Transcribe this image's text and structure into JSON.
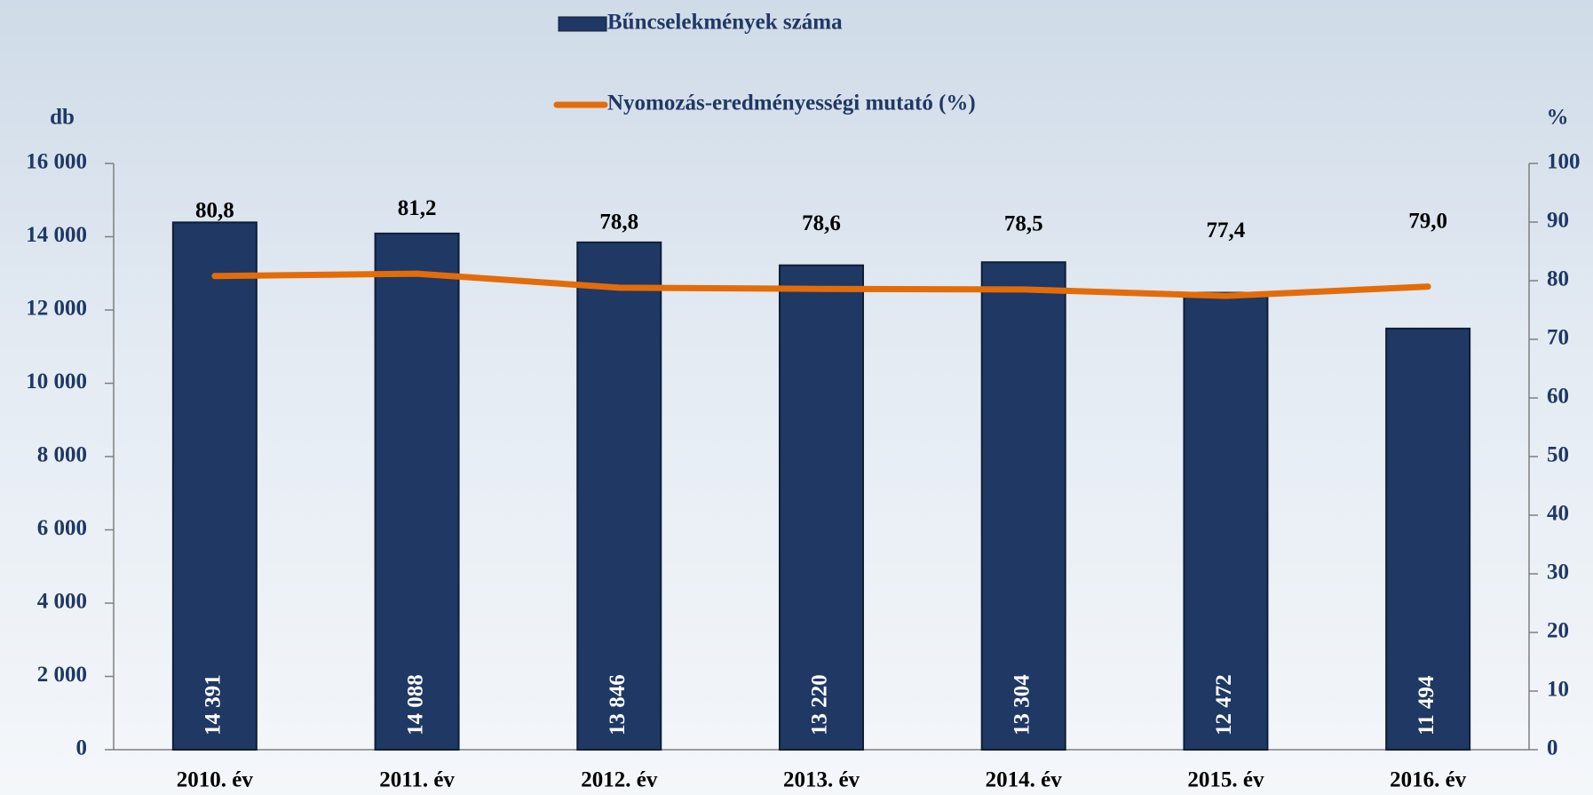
{
  "chart_data": {
    "type": "bar",
    "categories": [
      "2010. év",
      "2011. év",
      "2012. év",
      "2013. év",
      "2014. év",
      "2015. év",
      "2016. év"
    ],
    "series": [
      {
        "name": "Bűncselekmények száma",
        "type": "bar",
        "color": "#1f3864",
        "values": [
          14391,
          14088,
          13846,
          13220,
          13304,
          12472,
          11494
        ],
        "value_labels": [
          "14 391",
          "14 088",
          "13 846",
          "13 220",
          "13 304",
          "12 472",
          "11 494"
        ]
      },
      {
        "name": "Nyomozás-eredményességi mutató (%)",
        "type": "line",
        "axis": "y2",
        "color": "#e36c09",
        "values": [
          80.8,
          81.2,
          78.8,
          78.6,
          78.5,
          77.4,
          79.0
        ],
        "value_labels": [
          "80,8",
          "81,2",
          "78,8",
          "78,6",
          "78,5",
          "77,4",
          "79,0"
        ]
      }
    ],
    "ylabel": "db",
    "y2label": "%",
    "ylim": [
      0,
      16000
    ],
    "yticks": [
      0,
      {
        "value": 2000,
        "label": "2 000"
      },
      {
        "value": 4000,
        "label": "4 000"
      },
      {
        "value": 6000,
        "label": "6 000"
      },
      {
        "value": 8000,
        "label": "8 000"
      },
      {
        "value": 10000,
        "label": "10 000"
      },
      {
        "value": 12000,
        "label": "12 000"
      },
      {
        "value": 14000,
        "label": "14 000"
      },
      {
        "value": 16000,
        "label": "16 000"
      }
    ],
    "y2lim": [
      0,
      100
    ],
    "y2ticks": [
      0,
      10,
      20,
      30,
      40,
      50,
      60,
      70,
      80,
      90,
      100
    ]
  }
}
